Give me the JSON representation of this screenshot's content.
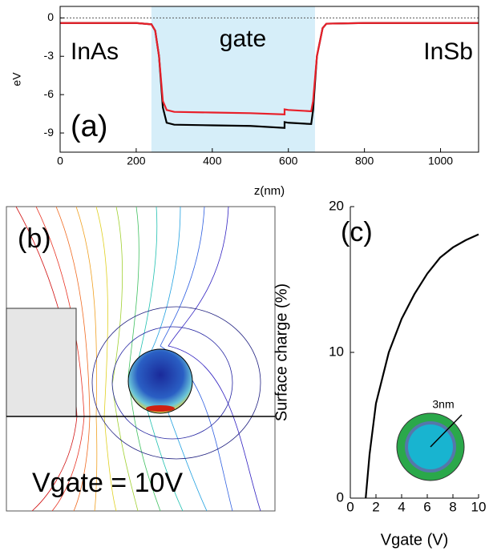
{
  "chart_data": [
    {
      "type": "line",
      "ylabel": "eV",
      "xlabel": "z(nm)",
      "annotations": [
        "InAs",
        "gate",
        "InSb",
        "(a)"
      ],
      "shade": [
        240,
        670
      ],
      "shade_color": "#d6eef9",
      "hline": 0,
      "x": [
        0,
        200,
        240,
        250,
        260,
        270,
        280,
        300,
        400,
        500,
        590,
        590,
        600,
        660,
        665,
        675,
        690,
        700,
        800,
        1000,
        1100
      ],
      "series": [
        {
          "color": "#000000",
          "values": [
            -0.4,
            -0.4,
            -0.5,
            -1.0,
            -3,
            -7,
            -8.2,
            -8.35,
            -8.4,
            -8.45,
            -8.6,
            -8.15,
            -8.2,
            -8.3,
            -7.2,
            -3,
            -0.8,
            -0.45,
            -0.4,
            -0.4,
            -0.4
          ]
        },
        {
          "color": "#e8202a",
          "values": [
            -0.4,
            -0.4,
            -0.5,
            -1.0,
            -3,
            -6.5,
            -7.2,
            -7.35,
            -7.4,
            -7.45,
            -7.55,
            -7.15,
            -7.2,
            -7.3,
            -6.5,
            -3,
            -0.8,
            -0.45,
            -0.4,
            -0.4,
            -0.4
          ]
        }
      ],
      "xlim": [
        0,
        1100
      ],
      "xticks": [
        0,
        200,
        400,
        600,
        800,
        1000
      ],
      "ylim": [
        -10.5,
        0.9
      ],
      "yticks": [
        0,
        -3,
        -6,
        -9
      ]
    },
    {
      "type": "line",
      "ylabel": "Surface charge (%)",
      "xlabel": "Vgate (V)",
      "annotations": [
        "(c)",
        "3nm"
      ],
      "x": [
        1.2,
        1.5,
        2,
        3,
        4,
        5,
        6,
        7,
        8,
        9,
        10
      ],
      "series": [
        {
          "color": "#000000",
          "values": [
            0,
            3,
            6.5,
            10,
            12.3,
            14,
            15.4,
            16.5,
            17.2,
            17.7,
            18.1
          ]
        }
      ],
      "xlim": [
        0,
        10
      ],
      "xticks": [
        0,
        2,
        4,
        6,
        8,
        10
      ],
      "ylim": [
        0,
        20
      ],
      "yticks": [
        0,
        10,
        20
      ]
    }
  ],
  "panel_b": {
    "label": "(b)",
    "annotation": "Vgate = 10V"
  }
}
